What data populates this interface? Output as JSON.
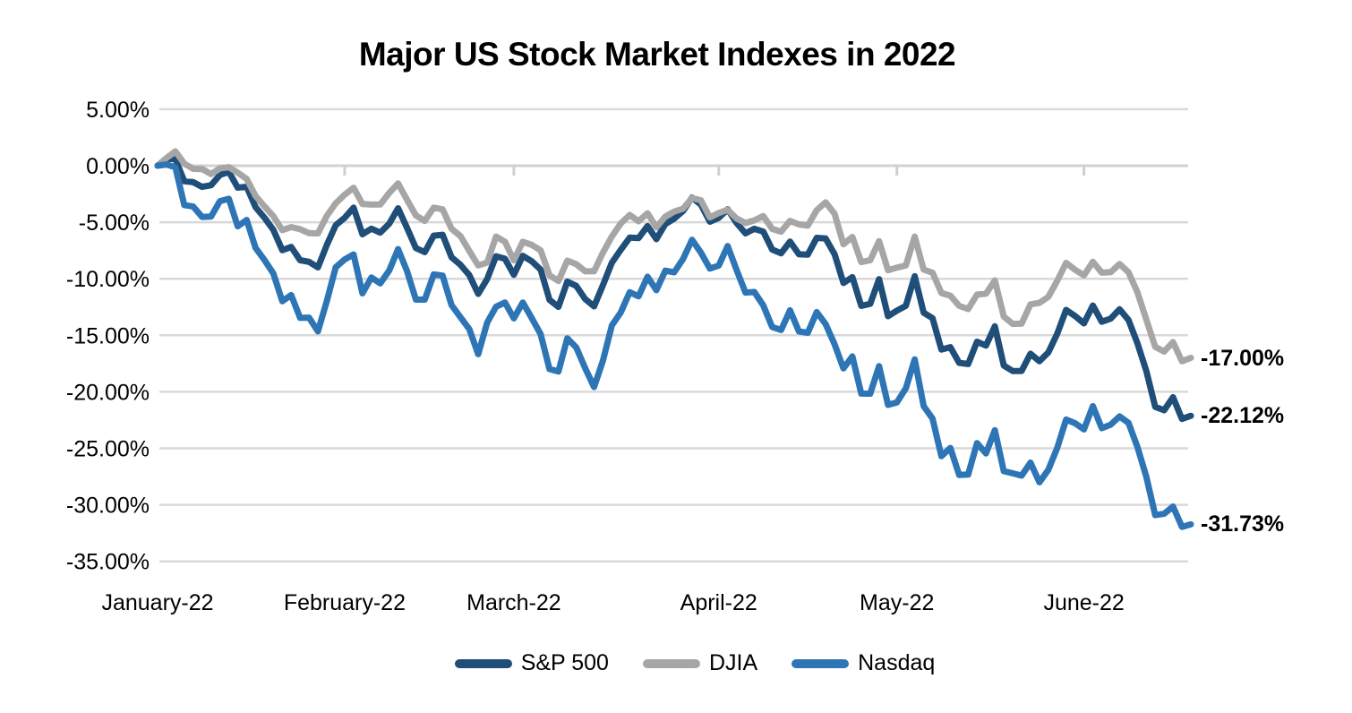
{
  "title": "Major US Stock Market Indexes in 2022",
  "chart_data": {
    "type": "line",
    "title": "Major US Stock Market Indexes in 2022",
    "background": "#FFFFFF",
    "grid_color": "#D9D9D9",
    "text_color": "#000000",
    "x_axis": {
      "labels": [
        "January-22",
        "February-22",
        "March-22",
        "April-22",
        "May-22",
        "June-22"
      ],
      "tick_indices": [
        0,
        21,
        40,
        63,
        83,
        104
      ],
      "point_count": 117
    },
    "y_axis": {
      "min": -35,
      "max": 5,
      "step": 5,
      "tick_labels": [
        "5.00%",
        "0.00%",
        "-5.00%",
        "-10.00%",
        "-15.00%",
        "-20.00%",
        "-25.00%",
        "-30.00%",
        "-35.00%"
      ]
    },
    "legend_position": "bottom",
    "series": [
      {
        "name": "S&P 500",
        "color": "#1F4E79",
        "end_label": "-22.12%",
        "values": [
          0,
          0.64,
          0.57,
          -1.37,
          -1.46,
          -1.87,
          -1.73,
          -0.82,
          -0.54,
          -1.94,
          -1.86,
          -3.66,
          -4.6,
          -5.68,
          -7.47,
          -7.19,
          -8.36,
          -8.5,
          -8.99,
          -7.01,
          -5.26,
          -4.61,
          -3.71,
          -6.06,
          -5.57,
          -5.92,
          -5.13,
          -3.76,
          -5.5,
          -7.29,
          -7.65,
          -6.19,
          -6.11,
          -8.1,
          -8.76,
          -9.68,
          -11.34,
          -10.02,
          -8.01,
          -8.23,
          -9.65,
          -7.97,
          -8.45,
          -9.18,
          -11.86,
          -12.49,
          -10.25,
          -10.63,
          -11.79,
          -12.44,
          -10.57,
          -8.57,
          -7.44,
          -6.36,
          -6.4,
          -5.34,
          -6.5,
          -5.16,
          -4.68,
          -4.0,
          -2.82,
          -3.44,
          -4.95,
          -4.62,
          -3.85,
          -5.06,
          -5.98,
          -5.58,
          -5.83,
          -7.42,
          -7.74,
          -6.71,
          -7.84,
          -7.86,
          -6.38,
          -6.44,
          -7.82,
          -10.37,
          -9.86,
          -12.4,
          -12.22,
          -10.04,
          -13.31,
          -12.82,
          -12.39,
          -9.78,
          -13.0,
          -13.49,
          -16.26,
          -16.05,
          -17.44,
          -17.54,
          -15.57,
          -15.91,
          -14.21,
          -17.68,
          -18.16,
          -18.15,
          -16.63,
          -17.3,
          -16.52,
          -14.86,
          -12.76,
          -13.3,
          -13.95,
          -12.37,
          -13.8,
          -13.53,
          -12.7,
          -13.65,
          -15.7,
          -18.16,
          -21.33,
          -21.63,
          -20.48,
          -22.4,
          -22.12
        ]
      },
      {
        "name": "DJIA",
        "color": "#A6A6A6",
        "end_label": "-17.00%",
        "values": [
          0,
          0.68,
          1.27,
          0.19,
          -0.28,
          -0.29,
          -0.74,
          -0.24,
          -0.13,
          -0.62,
          -1.17,
          -2.67,
          -3.6,
          -4.47,
          -5.7,
          -5.43,
          -5.62,
          -5.97,
          -5.99,
          -4.44,
          -3.32,
          -2.57,
          -1.95,
          -3.38,
          -3.44,
          -3.43,
          -2.41,
          -1.57,
          -3.02,
          -4.4,
          -4.88,
          -3.71,
          -3.86,
          -5.58,
          -6.22,
          -7.54,
          -8.82,
          -8.57,
          -6.27,
          -6.73,
          -8.37,
          -6.73,
          -7.0,
          -7.49,
          -9.69,
          -10.2,
          -8.4,
          -8.71,
          -9.34,
          -9.34,
          -7.69,
          -6.26,
          -5.11,
          -4.36,
          -4.91,
          -4.21,
          -5.45,
          -4.49,
          -4.06,
          -3.8,
          -2.87,
          -3.05,
          -4.57,
          -4.18,
          -3.9,
          -4.67,
          -5.07,
          -4.83,
          -4.45,
          -5.59,
          -5.83,
          -4.88,
          -5.19,
          -5.3,
          -3.93,
          -3.24,
          -4.25,
          -6.95,
          -6.3,
          -8.53,
          -8.36,
          -6.67,
          -9.25,
          -9.02,
          -8.83,
          -6.27,
          -9.19,
          -9.46,
          -11.26,
          -11.5,
          -12.4,
          -12.68,
          -11.4,
          -11.32,
          -10.14,
          -13.34,
          -13.99,
          -13.97,
          -12.27,
          -12.13,
          -11.61,
          -10.18,
          -8.6,
          -9.21,
          -9.7,
          -8.5,
          -9.46,
          -9.42,
          -8.69,
          -9.43,
          -11.19,
          -13.61,
          -16.02,
          -16.44,
          -15.6,
          -17.3,
          -17.0
        ]
      },
      {
        "name": "Nasdaq",
        "color": "#2E75B6",
        "end_label": "-31.73%",
        "values": [
          0,
          0.1,
          -0.14,
          -3.48,
          -3.61,
          -4.53,
          -4.49,
          -3.14,
          -2.92,
          -5.36,
          -4.8,
          -7.27,
          -8.34,
          -9.53,
          -11.99,
          -11.44,
          -13.46,
          -13.44,
          -14.65,
          -11.98,
          -8.98,
          -8.3,
          -7.85,
          -11.29,
          -9.89,
          -10.41,
          -9.27,
          -7.38,
          -9.33,
          -11.85,
          -11.85,
          -9.62,
          -9.72,
          -12.33,
          -13.4,
          -14.47,
          -16.67,
          -13.88,
          -12.47,
          -12.1,
          -13.5,
          -12.1,
          -13.47,
          -14.9,
          -17.99,
          -18.21,
          -15.27,
          -16.08,
          -17.9,
          -19.58,
          -17.24,
          -14.12,
          -12.98,
          -11.19,
          -11.55,
          -9.82,
          -11.01,
          -9.29,
          -9.43,
          -8.25,
          -6.55,
          -7.69,
          -9.1,
          -8.84,
          -7.11,
          -9.21,
          -11.22,
          -11.17,
          -12.36,
          -14.27,
          -14.53,
          -12.79,
          -14.66,
          -14.78,
          -12.95,
          -14.01,
          -15.79,
          -17.93,
          -16.87,
          -20.16,
          -20.17,
          -17.73,
          -21.16,
          -20.94,
          -19.69,
          -17.13,
          -21.27,
          -22.37,
          -25.7,
          -24.97,
          -27.36,
          -27.32,
          -24.54,
          -25.45,
          -23.4,
          -27.02,
          -27.21,
          -27.42,
          -26.27,
          -28.0,
          -26.91,
          -24.96,
          -22.46,
          -22.78,
          -23.33,
          -21.27,
          -23.22,
          -22.91,
          -22.18,
          -22.75,
          -24.87,
          -27.52,
          -30.91,
          -30.79,
          -30.15,
          -31.95,
          -31.73
        ]
      }
    ]
  }
}
